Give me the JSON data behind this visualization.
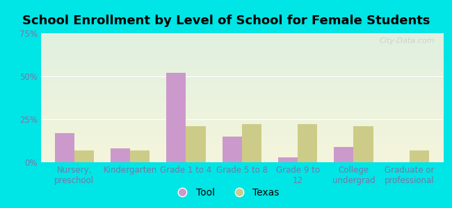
{
  "title": "School Enrollment by Level of School for Female Students",
  "categories": [
    "Nursery,\npreschool",
    "Kindergarten",
    "Grade 1 to 4",
    "Grade 5 to 8",
    "Grade 9 to\n12",
    "College\nundergrad",
    "Graduate or\nprofessional"
  ],
  "tool_values": [
    17,
    8,
    52,
    15,
    3,
    9,
    0
  ],
  "texas_values": [
    7,
    7,
    21,
    22,
    22,
    21,
    7
  ],
  "tool_color": "#cc99cc",
  "texas_color": "#cccc88",
  "background_outer": "#00e5e5",
  "background_inner_top": "#e0f0e0",
  "background_inner_bottom": "#f5f5dc",
  "ylim": [
    0,
    75
  ],
  "yticks": [
    0,
    25,
    50,
    75
  ],
  "ytick_labels": [
    "0%",
    "25%",
    "50%",
    "75%"
  ],
  "bar_width": 0.35,
  "title_fontsize": 13,
  "tick_fontsize": 8.5,
  "legend_fontsize": 10,
  "tick_color": "#7777aa",
  "watermark": "City-Data.com"
}
